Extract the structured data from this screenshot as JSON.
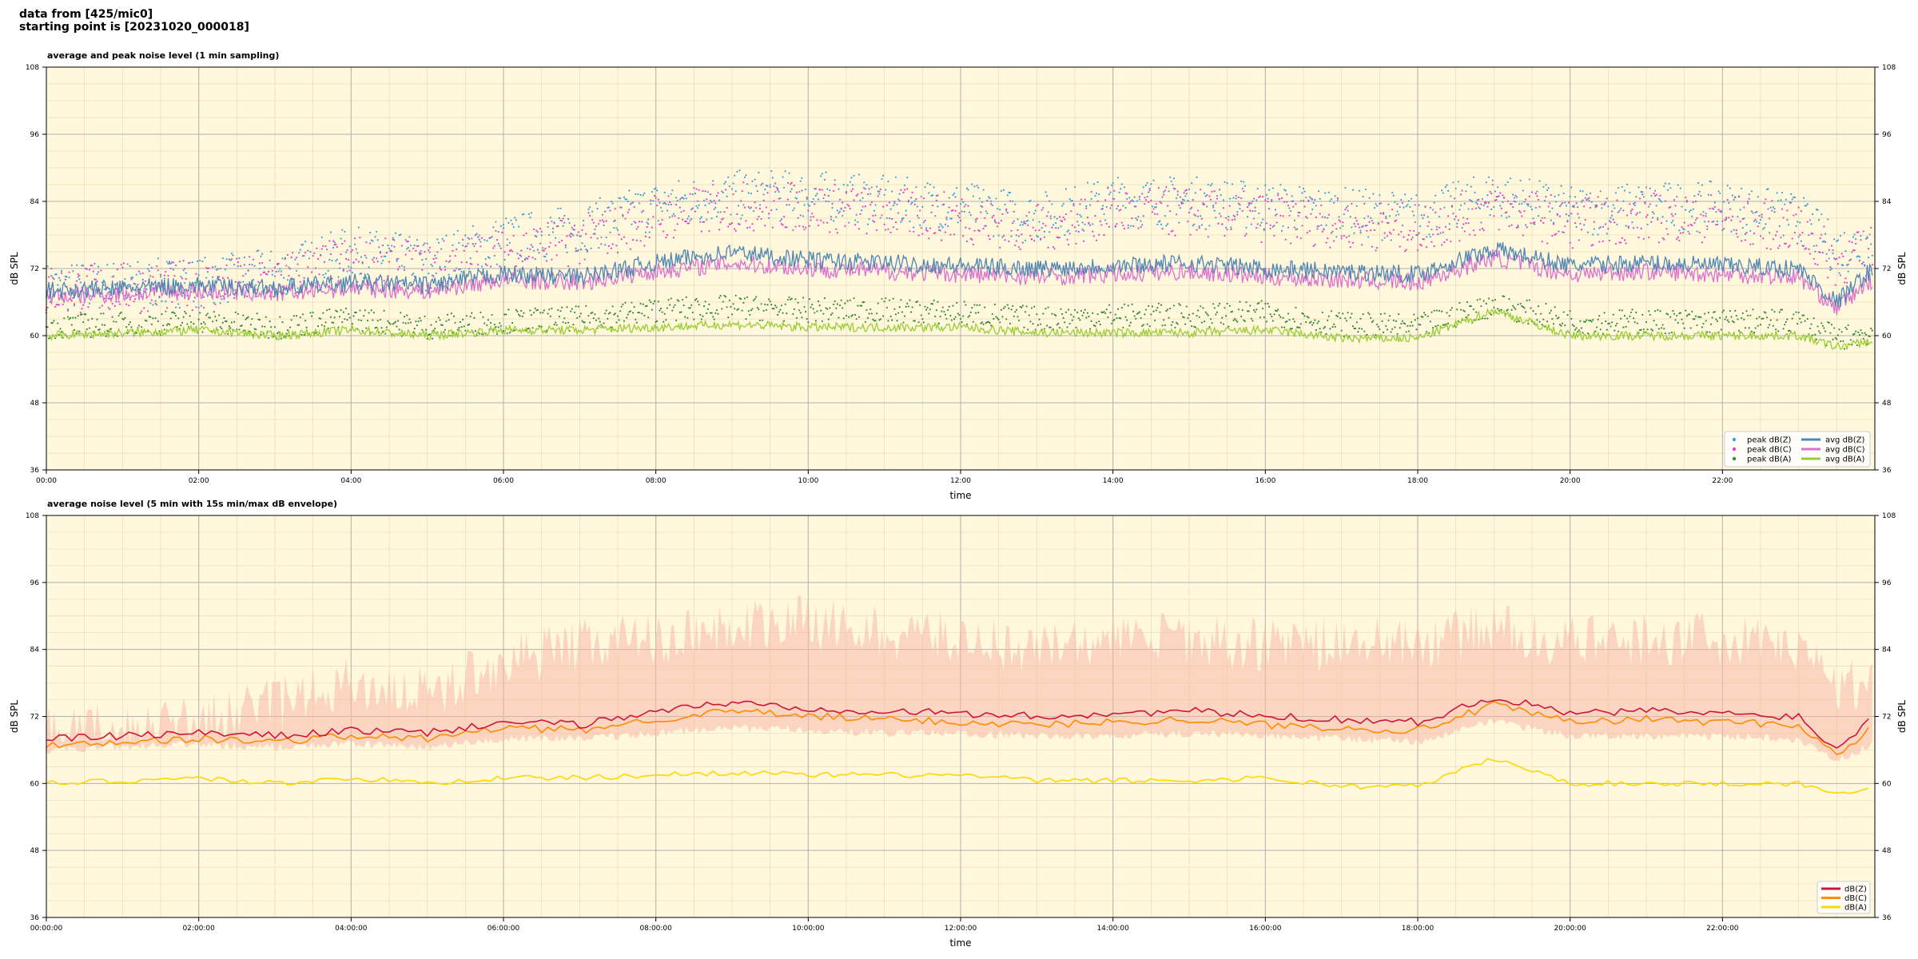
{
  "header": {
    "line1": "data from [425/mic0]",
    "line2": "starting point is [20231020_000018]"
  },
  "colors": {
    "background": "#fff8dc",
    "peak_z": "#3aa0d8",
    "peak_c": "#e83ec8",
    "peak_a": "#3a8a3a",
    "avg_z": "#4f86b4",
    "avg_c": "#dd6fd0",
    "avg_a": "#9acd32",
    "db_z": "#d0143c",
    "db_c": "#ff8c00",
    "db_a": "#ffd700",
    "envelope": "#f7b8a8"
  },
  "chart_data": [
    {
      "type": "line",
      "title": "average and peak noise level (1 min sampling)",
      "xlabel": "time",
      "ylabel": "dB SPL",
      "ylim": [
        36,
        108
      ],
      "yticks": [
        "36",
        "48",
        "60",
        "72",
        "84",
        "96",
        "108"
      ],
      "xlim_hours": [
        0,
        24
      ],
      "xticks": [
        "00:00",
        "02:00",
        "04:00",
        "06:00",
        "08:00",
        "10:00",
        "12:00",
        "14:00",
        "16:00",
        "18:00",
        "20:00",
        "22:00"
      ],
      "grid": true,
      "legend_position": "lower-right",
      "legend": [
        "peak dB(Z)",
        "peak dB(C)",
        "peak dB(A)",
        "avg dB(Z)",
        "avg dB(C)",
        "avg dB(A)"
      ],
      "x_hours": [
        0,
        1,
        2,
        3,
        4,
        5,
        6,
        7,
        8,
        9,
        10,
        11,
        12,
        13,
        14,
        15,
        16,
        17,
        18,
        19,
        20,
        21,
        22,
        23,
        23.5,
        23.97
      ],
      "series": [
        {
          "name": "avg dB(Z)",
          "values": [
            68,
            68.5,
            69,
            68.5,
            69.5,
            69,
            71,
            70.5,
            73,
            75,
            73.5,
            73,
            72.5,
            72,
            72.5,
            73,
            72,
            71.5,
            71,
            75.5,
            72.5,
            73,
            72.5,
            72,
            66,
            72
          ]
        },
        {
          "name": "avg dB(C)",
          "values": [
            67,
            67.5,
            68,
            67.5,
            68.5,
            68,
            70,
            69.5,
            71.5,
            73,
            72,
            71.5,
            71,
            70.5,
            71,
            71.5,
            70.5,
            70,
            69.5,
            74,
            71,
            71.5,
            71,
            70.5,
            65,
            70
          ]
        },
        {
          "name": "avg dB(A)",
          "values": [
            60,
            60.5,
            61,
            60,
            61,
            60,
            61,
            61,
            61.5,
            62,
            61.5,
            61.5,
            61.5,
            60.5,
            60.5,
            60.5,
            61,
            59.5,
            59.5,
            64.5,
            60,
            60,
            60,
            60,
            58,
            59
          ]
        },
        {
          "name": "peak dB(Z)",
          "values": [
            69.5,
            70,
            70.5,
            72,
            76,
            74,
            78,
            80,
            84,
            86,
            86,
            85,
            84,
            82,
            85,
            85,
            84,
            83,
            82,
            86,
            83,
            84,
            84,
            82,
            76,
            78
          ]
        },
        {
          "name": "peak dB(C)",
          "values": [
            69,
            69.5,
            70,
            71,
            74.5,
            73,
            76,
            78,
            82,
            84,
            84,
            83,
            82,
            80,
            83,
            83,
            82,
            81,
            80,
            84,
            81,
            82,
            82,
            80,
            74,
            76
          ]
        },
        {
          "name": "peak dB(A)",
          "values": [
            62,
            62.5,
            63,
            62,
            63.5,
            62,
            63,
            63.5,
            65,
            65.5,
            65,
            65,
            64.5,
            63.5,
            64,
            64,
            64.5,
            62.5,
            62,
            66,
            63,
            63,
            63,
            63,
            60,
            61
          ]
        }
      ]
    },
    {
      "type": "line",
      "title": "average noise level (5 min with 15s min/max dB envelope)",
      "xlabel": "time",
      "ylabel": "dB SPL",
      "ylim": [
        36,
        108
      ],
      "yticks": [
        "36",
        "48",
        "60",
        "72",
        "84",
        "96",
        "108"
      ],
      "xlim_hours": [
        0,
        24
      ],
      "xticks": [
        "00:00:00",
        "02:00:00",
        "04:00:00",
        "06:00:00",
        "08:00:00",
        "10:00:00",
        "12:00:00",
        "14:00:00",
        "16:00:00",
        "18:00:00",
        "20:00:00",
        "22:00:00"
      ],
      "grid": true,
      "legend_position": "lower-right",
      "legend": [
        "dB(Z)",
        "dB(C)",
        "dB(A)"
      ],
      "x_hours": [
        0,
        1,
        2,
        3,
        4,
        5,
        6,
        7,
        8,
        9,
        10,
        11,
        12,
        13,
        14,
        15,
        16,
        17,
        18,
        19,
        20,
        21,
        22,
        23,
        23.5,
        23.97
      ],
      "series": [
        {
          "name": "dB(Z)",
          "values": [
            68,
            68.5,
            69,
            68.5,
            69.5,
            69,
            71,
            70.5,
            73,
            74.5,
            73.5,
            73,
            72.5,
            72,
            72.5,
            73,
            72,
            71.5,
            71,
            75.5,
            72.5,
            73,
            72.5,
            72,
            66,
            72
          ]
        },
        {
          "name": "dB(C)",
          "values": [
            67,
            67.5,
            68,
            67.5,
            68.5,
            68,
            70,
            69.5,
            71.5,
            73,
            72,
            71.5,
            71,
            70.5,
            71,
            71.5,
            70.5,
            70,
            69.5,
            74,
            71,
            71.5,
            71,
            70.5,
            65,
            70
          ]
        },
        {
          "name": "dB(A)",
          "values": [
            60,
            60.5,
            61,
            60,
            61,
            60,
            61,
            61,
            61.5,
            62,
            61.5,
            61.5,
            61.5,
            60.5,
            60.5,
            60.5,
            61,
            59.5,
            59.5,
            64.5,
            60,
            60,
            60,
            60,
            58,
            59
          ]
        }
      ],
      "envelope": {
        "min": [
          66,
          66.5,
          67,
          66.5,
          67,
          66.5,
          68,
          68,
          69,
          70,
          69.5,
          69,
          69,
          68.5,
          68.5,
          69,
          68.5,
          68,
          67.5,
          71,
          68.5,
          68.5,
          68.5,
          68,
          64,
          67
        ],
        "max": [
          71,
          71.5,
          73,
          76,
          80,
          78,
          84,
          87,
          88,
          90,
          91,
          89,
          88,
          86,
          88,
          88,
          87,
          87,
          87,
          90,
          87,
          88,
          88,
          86,
          80,
          80
        ]
      }
    }
  ]
}
